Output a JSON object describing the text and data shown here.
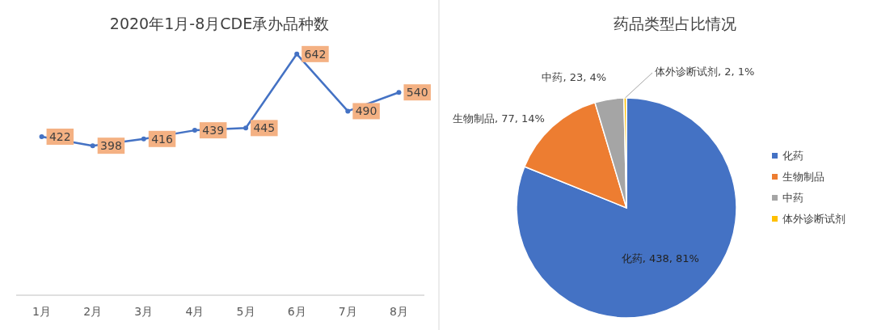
{
  "chart_data": [
    {
      "type": "line",
      "title": "2020年1月-8月CDE承办品种数",
      "categories": [
        "1月",
        "2月",
        "3月",
        "4月",
        "5月",
        "6月",
        "7月",
        "8月"
      ],
      "series": [
        {
          "color": "#4472c4",
          "values": [
            422,
            398,
            416,
            439,
            445,
            642,
            490,
            540
          ]
        }
      ],
      "marker": "circle",
      "data_labels": true,
      "grid": false,
      "legend": false,
      "tick_labels": "x"
    },
    {
      "type": "pie",
      "title": "药品类型占比情况",
      "categories": [
        "化药",
        "生物制品",
        "中药",
        "体外诊断试剂"
      ],
      "values": [
        438,
        77,
        23,
        2
      ],
      "colors": [
        "#4472c4",
        "#ed7d31",
        "#a5a5a5",
        "#ffc000"
      ],
      "value_labels": [
        "化药, 438, 81%",
        "生物制品, 77, 14%",
        "中药, 23, 4%",
        "体外诊断试剂, 2, 1%"
      ],
      "legend": "right"
    }
  ]
}
